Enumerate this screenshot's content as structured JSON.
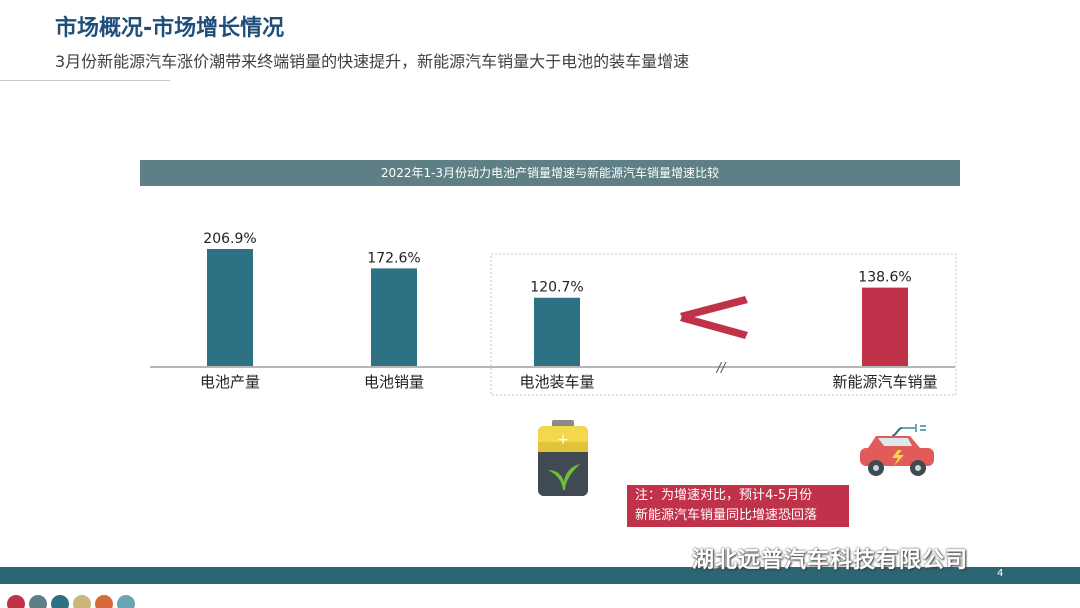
{
  "header": {
    "title": "市场概况-市场增长情况",
    "subtitle": "3月份新能源汽车涨价潮带来终端销量的快速提升，新能源汽车销量大于电池的装车量增速"
  },
  "chart_data": {
    "type": "bar",
    "title": "2022年1-3月份动力电池产销量增速与新能源汽车销量增速比较",
    "categories": [
      "电池产量",
      "电池销量",
      "电池装车量",
      "新能源汽车销量"
    ],
    "values": [
      206.9,
      172.6,
      120.7,
      138.6
    ],
    "value_labels": [
      "206.9%",
      "172.6%",
      "120.7%",
      "138.6%"
    ],
    "bar_colors": [
      "#2e7185",
      "#2e7185",
      "#2e7185",
      "#c0314a"
    ],
    "comparison_symbol": "≤",
    "axis_break": "//",
    "grid": false,
    "legend": "none"
  },
  "note": {
    "line1": "注：为增速对比，预计4-5月份",
    "line2": "新能源汽车销量同比增速恐回落"
  },
  "icons": {
    "battery": "battery-leaf-icon",
    "car": "electric-car-icon"
  },
  "footer": {
    "watermark": "湖北远普汽车科技有限公司",
    "page_number": "4",
    "dot_colors": [
      "#c0314a",
      "#5f7f86",
      "#2e7185",
      "#c9b87a",
      "#d66a3a",
      "#6aa4b5"
    ]
  }
}
